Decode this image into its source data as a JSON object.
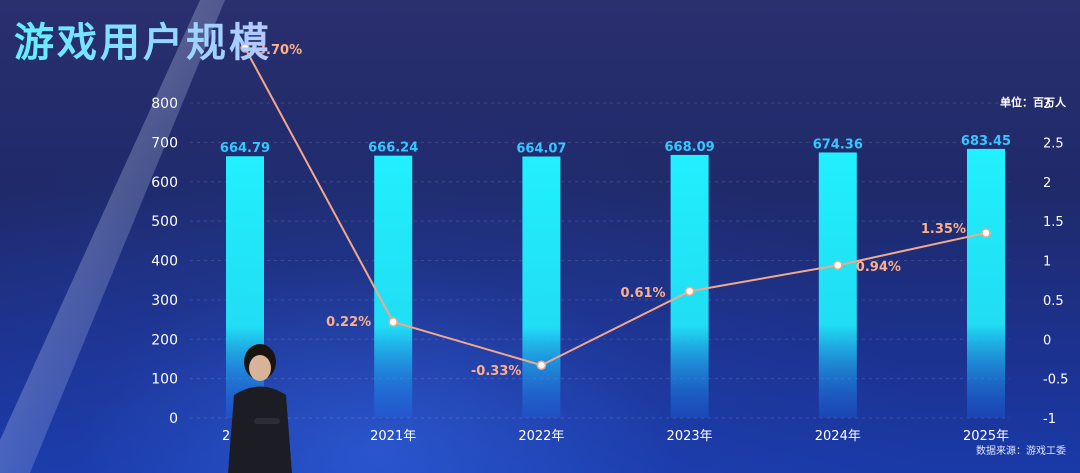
{
  "title": "游戏用户规模",
  "unit_label": "单位：百万人",
  "source_label": "数据来源：游戏工委",
  "colors": {
    "bar_top": "#21f0ff",
    "bar_bottom": "#1a6ef0",
    "line": "#f3a88c",
    "point_fill": "#ffffff",
    "bar_label": "#35c8ff",
    "line_label": "#ffb08a",
    "axis_text": "#ffffff"
  },
  "chart_data": {
    "type": "bar",
    "categories": [
      "2020年",
      "2021年",
      "2022年",
      "2023年",
      "2024年",
      "2025年"
    ],
    "series": [
      {
        "type": "bar",
        "axis": "left",
        "values": [
          664.79,
          666.24,
          664.07,
          668.09,
          674.36,
          683.45
        ],
        "labels": [
          "664.79",
          "666.24",
          "664.07",
          "668.09",
          "674.36",
          "683.45"
        ]
      },
      {
        "type": "line",
        "axis": "right",
        "values": [
          3.7,
          0.22,
          -0.33,
          0.61,
          0.94,
          1.35
        ],
        "labels": [
          "3.70%",
          "0.22%",
          "-0.33%",
          "0.61%",
          "0.94%",
          "1.35%"
        ]
      }
    ],
    "y_left": {
      "ylim": [
        0,
        800
      ],
      "ticks": [
        "0",
        "100",
        "200",
        "300",
        "400",
        "500",
        "600",
        "700",
        "800"
      ]
    },
    "y_right": {
      "ylim": [
        -1,
        3
      ],
      "ticks": [
        "-1",
        "-0.5",
        "0",
        "0.5",
        "1",
        "1.5",
        "2",
        "2.5",
        "3"
      ]
    },
    "grid": true,
    "legend": "none"
  }
}
